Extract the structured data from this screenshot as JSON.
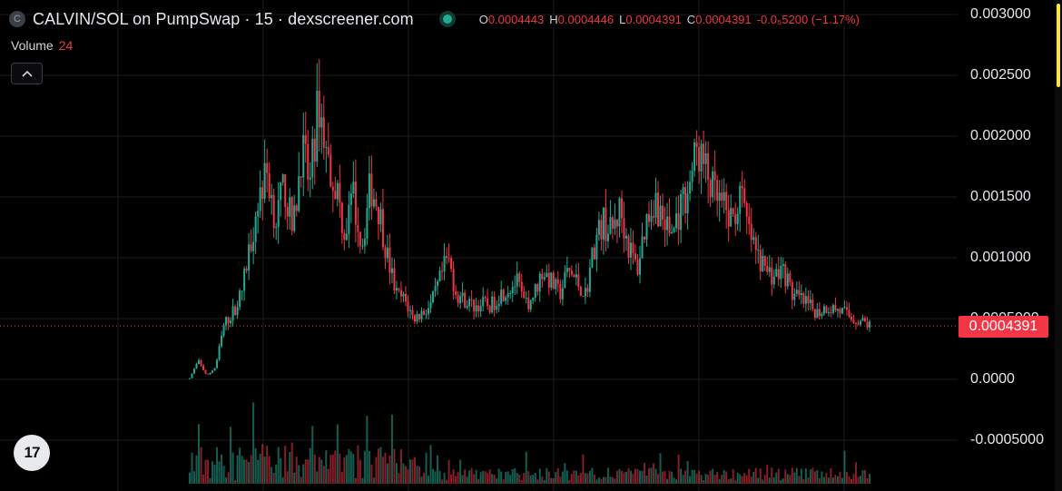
{
  "header": {
    "coin_letter": "C",
    "title": "CALVIN/SOL on PumpSwap · 15 · dexscreener.com",
    "ohlc": {
      "o_label": "O",
      "o_value": "0.0004443",
      "h_label": "H",
      "h_value": "0.0004446",
      "l_label": "L",
      "l_value": "0.0004391",
      "c_label": "C",
      "c_value": "0.0004391",
      "change": "-0.0₅5200 (−1.17%)"
    }
  },
  "volume": {
    "label": "Volume",
    "value": "24"
  },
  "logo_text": "17",
  "colors": {
    "up": "#22ab94",
    "down": "#f23645",
    "grid": "#1c1c1f",
    "last_price_line": "#f23645"
  },
  "chart_data": {
    "type": "candlestick",
    "interval": "15",
    "last_price": 0.0004391,
    "last_price_label": "0.0004391",
    "ylim": [
      -0.00065,
      0.0031
    ],
    "y_ticks": [
      0.003,
      0.0025,
      0.002,
      0.0015,
      0.001,
      0.0005,
      0.0,
      -0.0005
    ],
    "y_tick_labels": [
      "0.003000",
      "0.002500",
      "0.002000",
      "0.001500",
      "0.001000",
      "0.0005000",
      "0.0000",
      "-0.0005000"
    ],
    "grid": true,
    "close_trace": [
      1e-05,
      0.00015,
      3e-05,
      0.0001,
      0.00045,
      0.00055,
      0.0007,
      0.0011,
      0.0015,
      0.0017,
      0.0013,
      0.0016,
      0.0012,
      0.0019,
      0.0016,
      0.0023,
      0.0018,
      0.0016,
      0.0012,
      0.0015,
      0.0011,
      0.0016,
      0.0014,
      0.001,
      0.0007,
      0.00065,
      0.0005,
      0.00055,
      0.0006,
      0.0008,
      0.001,
      0.0007,
      0.00065,
      0.0006,
      0.00062,
      0.0006,
      0.0007,
      0.00075,
      0.0008,
      0.0006,
      0.0007,
      0.0009,
      0.0008,
      0.0007,
      0.0009,
      0.0008,
      0.0007,
      0.0011,
      0.0013,
      0.0012,
      0.0014,
      0.0011,
      0.0009,
      0.0013,
      0.0015,
      0.0013,
      0.0012,
      0.0014,
      0.0016,
      0.0019,
      0.0017,
      0.0015,
      0.0014,
      0.0013,
      0.0015,
      0.0012,
      0.001,
      0.0009,
      0.00085,
      0.0009,
      0.0007,
      0.00065,
      0.0006,
      0.00055,
      0.0006,
      0.00058,
      0.00055,
      0.0005,
      0.00048,
      0.000445
    ]
  }
}
